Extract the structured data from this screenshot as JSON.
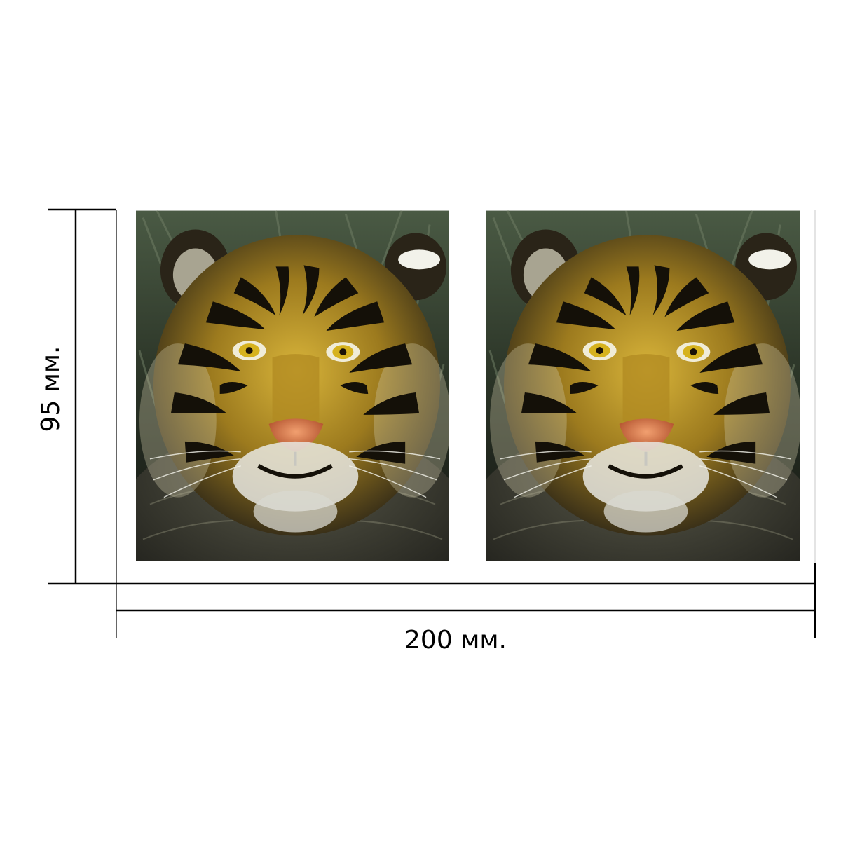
{
  "dimensions": {
    "height_label": "95 мм.",
    "width_label": "200 мм."
  },
  "panels": [
    {
      "subject": "tiger-face",
      "palette": {
        "fur": "#c9a32a",
        "stripe": "#141008",
        "foliage": "#33402c",
        "nose": "#e0895a",
        "eye": "#d6b21e",
        "muzzle": "#e8e8e2"
      }
    },
    {
      "subject": "tiger-face",
      "palette": {
        "fur": "#c9a32a",
        "stripe": "#141008",
        "foliage": "#33402c",
        "nose": "#e0895a",
        "eye": "#d6b21e",
        "muzzle": "#e8e8e2"
      }
    }
  ]
}
